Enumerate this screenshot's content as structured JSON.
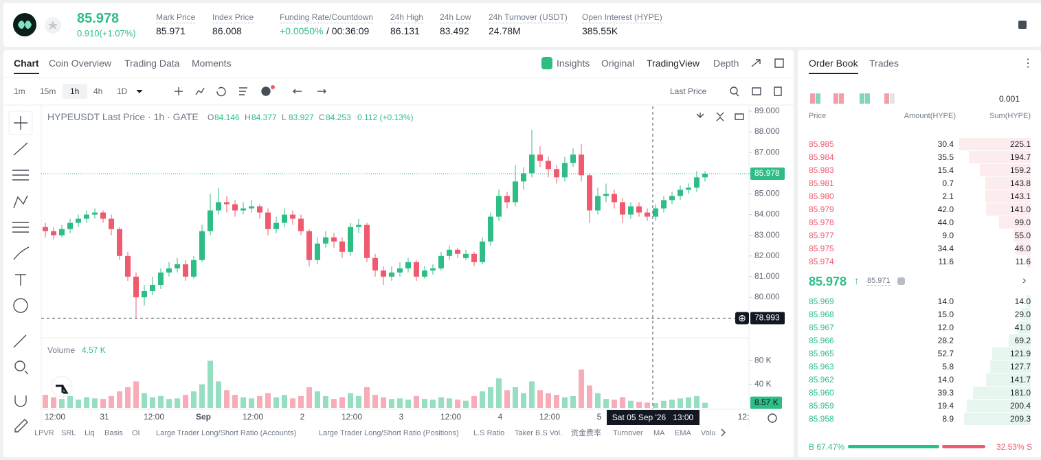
{
  "header": {
    "price": "85.978",
    "change": "0.910(+1.07%)",
    "stats": [
      {
        "label": "Mark Price",
        "value": "85.971"
      },
      {
        "label": "Index Price",
        "value": "86.008"
      },
      {
        "label": "Funding Rate/Countdown",
        "value": "+0.0050%",
        "extra": " / 00:36:09"
      },
      {
        "label": "24h High",
        "value": "86.131"
      },
      {
        "label": "24h Low",
        "value": "83.492"
      },
      {
        "label": "24h Turnover (USDT)",
        "value": "24.78M"
      },
      {
        "label": "Open Interest (HYPE)",
        "value": "385.55K"
      }
    ]
  },
  "chart_tabs": {
    "left": [
      "Chart",
      "Coin Overview",
      "Trading Data",
      "Moments"
    ],
    "right": [
      "Insights",
      "Original",
      "TradingView",
      "Depth"
    ]
  },
  "toolbar": {
    "intervals": [
      "1m",
      "15m",
      "1h",
      "4h",
      "1D"
    ],
    "price_type": "Last Price"
  },
  "legend": {
    "symbol": "HYPEUSDT Last Price · 1h · GATE",
    "fields": [
      {
        "key": "O",
        "value": "84.146"
      },
      {
        "key": "H",
        "value": "84.377"
      },
      {
        "key": "L",
        "value": "83.927"
      },
      {
        "key": "C",
        "value": "84.253"
      }
    ],
    "change": "0.112 (+0.13%)",
    "volume_title": "Volume",
    "volume_value": "4.57 K"
  },
  "chart": {
    "type": "candlestick",
    "up_color": "#2ebd85",
    "down_color": "#ef5a6f",
    "ylim": [
      78.11,
      89.23
    ],
    "yticks": [
      {
        "value": 89,
        "label": "89.000"
      },
      {
        "value": 88,
        "label": "88.000"
      },
      {
        "value": 87,
        "label": "87.000"
      },
      {
        "value": 86,
        "label": "86.000"
      },
      {
        "value": 85,
        "label": "85.000"
      },
      {
        "value": 84,
        "label": "84.000"
      },
      {
        "value": 83,
        "label": "83.000"
      },
      {
        "value": 82,
        "label": "82.000"
      },
      {
        "value": 81,
        "label": "81.000"
      },
      {
        "value": 80,
        "label": "80.000"
      }
    ],
    "last_price": {
      "value": 85.978,
      "label": "85.978"
    },
    "crosshair_price": {
      "value": 78.993,
      "label": "78.993"
    },
    "crosshair_time": "Sat 05 Sep '26   13:00",
    "xlabels": [
      "12:00",
      "31",
      "12:00",
      "Sep",
      "12:00",
      "2",
      "12:00",
      "3",
      "12:00",
      "4",
      "12:00",
      "5",
      "12:"
    ],
    "candles": [
      [
        83.4,
        83.6,
        82.9,
        83.2
      ],
      [
        83.2,
        83.4,
        82.8,
        83.0
      ],
      [
        83.0,
        83.5,
        82.9,
        83.3
      ],
      [
        83.3,
        83.8,
        83.1,
        83.6
      ],
      [
        83.6,
        84.0,
        83.4,
        83.8
      ],
      [
        83.8,
        84.2,
        83.6,
        84.0
      ],
      [
        84.0,
        84.3,
        83.8,
        84.1
      ],
      [
        84.1,
        84.2,
        83.6,
        83.8
      ],
      [
        83.8,
        84.0,
        83.0,
        83.3
      ],
      [
        83.3,
        83.4,
        81.8,
        82.0
      ],
      [
        82.0,
        82.2,
        80.8,
        81.0
      ],
      [
        81.0,
        81.2,
        79.0,
        80.0
      ],
      [
        80.0,
        80.6,
        79.6,
        80.3
      ],
      [
        80.3,
        81.0,
        80.1,
        80.6
      ],
      [
        80.6,
        81.4,
        80.4,
        81.2
      ],
      [
        81.2,
        81.7,
        81.0,
        81.4
      ],
      [
        81.4,
        81.9,
        81.2,
        81.6
      ],
      [
        81.6,
        81.8,
        80.8,
        81.0
      ],
      [
        81.0,
        82.0,
        80.9,
        81.8
      ],
      [
        81.8,
        83.5,
        81.7,
        83.2
      ],
      [
        83.2,
        85.0,
        83.0,
        84.2
      ],
      [
        84.2,
        85.3,
        84.0,
        84.6
      ],
      [
        84.6,
        84.9,
        84.1,
        84.5
      ],
      [
        84.5,
        84.7,
        83.9,
        84.2
      ],
      [
        84.2,
        84.6,
        84.0,
        84.3
      ],
      [
        84.3,
        84.7,
        84.1,
        84.4
      ],
      [
        84.4,
        84.5,
        83.8,
        84.1
      ],
      [
        84.1,
        84.3,
        83.0,
        83.3
      ],
      [
        83.3,
        83.9,
        83.1,
        83.6
      ],
      [
        83.6,
        84.3,
        83.4,
        84.0
      ],
      [
        84.0,
        84.2,
        83.5,
        83.8
      ],
      [
        83.8,
        84.0,
        83.0,
        83.2
      ],
      [
        83.2,
        83.3,
        81.5,
        81.8
      ],
      [
        81.8,
        82.9,
        81.6,
        82.6
      ],
      [
        82.6,
        83.2,
        82.4,
        82.9
      ],
      [
        82.9,
        83.1,
        82.4,
        82.7
      ],
      [
        82.7,
        82.9,
        81.9,
        82.2
      ],
      [
        82.2,
        83.6,
        82.0,
        83.4
      ],
      [
        83.4,
        83.8,
        83.1,
        83.5
      ],
      [
        83.5,
        83.6,
        81.7,
        81.9
      ],
      [
        81.9,
        82.1,
        81.0,
        81.3
      ],
      [
        81.3,
        81.5,
        80.6,
        81.0
      ],
      [
        81.0,
        81.5,
        80.8,
        81.2
      ],
      [
        81.2,
        81.7,
        81.0,
        81.4
      ],
      [
        81.4,
        81.9,
        81.2,
        81.7
      ],
      [
        81.7,
        81.8,
        80.8,
        81.0
      ],
      [
        81.0,
        81.5,
        80.9,
        81.3
      ],
      [
        81.3,
        81.6,
        81.1,
        81.4
      ],
      [
        81.4,
        82.2,
        81.3,
        82.0
      ],
      [
        82.0,
        82.5,
        81.8,
        82.3
      ],
      [
        82.3,
        82.4,
        81.9,
        82.1
      ],
      [
        81.9,
        82.3,
        81.8,
        82.1
      ],
      [
        82.1,
        82.2,
        81.5,
        81.7
      ],
      [
        81.7,
        82.9,
        81.6,
        82.7
      ],
      [
        82.7,
        84.1,
        82.5,
        83.9
      ],
      [
        83.9,
        85.2,
        83.7,
        84.9
      ],
      [
        84.9,
        85.1,
        84.3,
        84.6
      ],
      [
        84.6,
        86.4,
        84.4,
        85.6
      ],
      [
        85.6,
        86.3,
        85.2,
        86.0
      ],
      [
        86.0,
        88.1,
        85.8,
        86.9
      ],
      [
        86.9,
        87.3,
        86.3,
        86.6
      ],
      [
        86.6,
        86.8,
        85.8,
        86.2
      ],
      [
        86.2,
        86.4,
        85.5,
        85.8
      ],
      [
        85.8,
        86.8,
        85.6,
        86.5
      ],
      [
        86.5,
        87.2,
        86.3,
        86.9
      ],
      [
        86.9,
        87.4,
        85.6,
        85.9
      ],
      [
        85.9,
        86.0,
        83.6,
        84.2
      ],
      [
        84.2,
        85.3,
        84.0,
        84.9
      ],
      [
        84.9,
        85.5,
        84.6,
        85.0
      ],
      [
        85.0,
        85.2,
        84.3,
        84.6
      ],
      [
        84.6,
        84.8,
        83.6,
        84.0
      ],
      [
        84.0,
        84.6,
        83.8,
        84.4
      ],
      [
        84.4,
        84.6,
        83.9,
        84.1
      ],
      [
        84.1,
        84.3,
        83.7,
        83.9
      ],
      [
        83.9,
        84.5,
        83.7,
        84.3
      ],
      [
        84.3,
        84.9,
        84.1,
        84.7
      ],
      [
        84.7,
        85.1,
        84.5,
        84.9
      ],
      [
        84.9,
        85.4,
        84.7,
        85.2
      ],
      [
        85.2,
        85.5,
        85.0,
        85.3
      ],
      [
        85.3,
        86.1,
        85.1,
        85.8
      ],
      [
        85.8,
        86.1,
        85.6,
        85.978
      ]
    ],
    "volume_ylim": [
      0,
      119
    ],
    "volume_ticks": [
      {
        "value": 80,
        "label": "80 K"
      },
      {
        "value": 40,
        "label": "40 K"
      }
    ],
    "volume_tag": {
      "value": 8.57,
      "label": "8.57 K"
    },
    "volumes": [
      22,
      18,
      15,
      20,
      14,
      18,
      16,
      15,
      20,
      28,
      35,
      45,
      25,
      18,
      20,
      15,
      16,
      22,
      28,
      40,
      80,
      45,
      30,
      22,
      18,
      16,
      20,
      25,
      18,
      22,
      16,
      20,
      35,
      28,
      20,
      15,
      18,
      25,
      20,
      35,
      22,
      18,
      15,
      16,
      14,
      20,
      15,
      14,
      18,
      16,
      14,
      12,
      20,
      28,
      35,
      50,
      30,
      35,
      25,
      45,
      30,
      25,
      22,
      18,
      20,
      65,
      38,
      25,
      15,
      14,
      18,
      12,
      10,
      9,
      8,
      12,
      14,
      16,
      18,
      20,
      8.57
    ]
  },
  "indicators": [
    "LPVR",
    "SRL",
    "Liq",
    "Basis",
    "OI",
    "Large Trader Long/Short Ratio (Accounts)",
    "Large Trader Long/Short Ratio (Positions)",
    "L.S Ratio",
    "Taker B.S Vol.",
    "资金费率",
    "Turnover",
    "MA",
    "EMA",
    "Volu"
  ],
  "order_book": {
    "tabs": [
      "Order Book",
      "Trades"
    ],
    "precision": "0.001",
    "columns": [
      "Price",
      "Amount(HYPE)",
      "Sum(HYPE)"
    ],
    "asks": [
      [
        "85.985",
        "30.4",
        "225.1"
      ],
      [
        "85.984",
        "35.5",
        "194.7"
      ],
      [
        "85.983",
        "15.4",
        "159.2"
      ],
      [
        "85.981",
        "0.7",
        "143.8"
      ],
      [
        "85.980",
        "2.1",
        "143.1"
      ],
      [
        "85.979",
        "42.0",
        "141.0"
      ],
      [
        "85.978",
        "44.0",
        "99.0"
      ],
      [
        "85.977",
        "9.0",
        "55.0"
      ],
      [
        "85.975",
        "34.4",
        "46.0"
      ],
      [
        "85.974",
        "11.6",
        "11.6"
      ]
    ],
    "mid_price": "85.978",
    "mark_price": "85.971",
    "bids": [
      [
        "85.969",
        "14.0",
        "14.0"
      ],
      [
        "85.968",
        "15.0",
        "29.0"
      ],
      [
        "85.967",
        "12.0",
        "41.0"
      ],
      [
        "85.966",
        "28.2",
        "69.2"
      ],
      [
        "85.965",
        "52.7",
        "121.9"
      ],
      [
        "85.963",
        "5.8",
        "127.7"
      ],
      [
        "85.962",
        "14.0",
        "141.7"
      ],
      [
        "85.960",
        "39.3",
        "181.0"
      ],
      [
        "85.959",
        "19.4",
        "200.4"
      ],
      [
        "85.958",
        "8.9",
        "209.3"
      ]
    ],
    "buy_ratio": {
      "value": 67.47,
      "label": "B 67.47%"
    },
    "sell_ratio": {
      "value": 32.53,
      "label": "32.53% S"
    }
  }
}
